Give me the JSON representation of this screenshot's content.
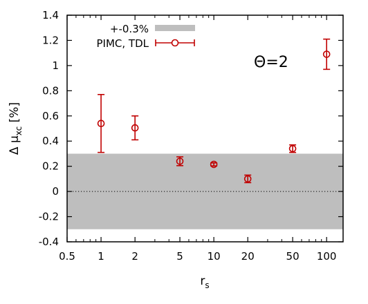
{
  "chart_data": {
    "type": "scatter",
    "x_scale": "log",
    "xlim": [
      0.5,
      140
    ],
    "ylim": [
      -0.4,
      1.4
    ],
    "x_ticks": [
      0.5,
      1,
      2,
      5,
      10,
      20,
      50,
      100
    ],
    "x_tick_labels": [
      "0.5",
      "1",
      "2",
      "5",
      "10",
      "20",
      "50",
      "100"
    ],
    "y_ticks": [
      -0.4,
      -0.2,
      0,
      0.2,
      0.4,
      0.6,
      0.8,
      1,
      1.2,
      1.4
    ],
    "y_tick_labels": [
      "-0.4",
      "-0.2",
      "0",
      "0.2",
      "0.4",
      "0.6",
      "0.8",
      "1",
      "1.2",
      "1.4"
    ],
    "xlabel": {
      "main": "r",
      "sub": "s"
    },
    "ylabel": {
      "pre": "Δ μ",
      "sub": "xc",
      "post": " [%]"
    },
    "annotation": "Θ=2",
    "band": {
      "name": "+-0.3%",
      "lower": -0.3,
      "upper": 0.3,
      "color": "#bebebe"
    },
    "zero_line": {
      "y": 0,
      "style": "dotted",
      "color": "#000000"
    },
    "series": [
      {
        "name": "PIMC, TDL",
        "color": "#c00000",
        "marker": "open-circle",
        "x": [
          1,
          2,
          5,
          10,
          20,
          50,
          100
        ],
        "y": [
          0.54,
          0.505,
          0.24,
          0.215,
          0.1,
          0.34,
          1.09
        ],
        "err": [
          0.23,
          0.095,
          0.035,
          0.012,
          0.03,
          0.03,
          0.12
        ]
      }
    ],
    "legend_position": "top-left",
    "grid": false
  }
}
